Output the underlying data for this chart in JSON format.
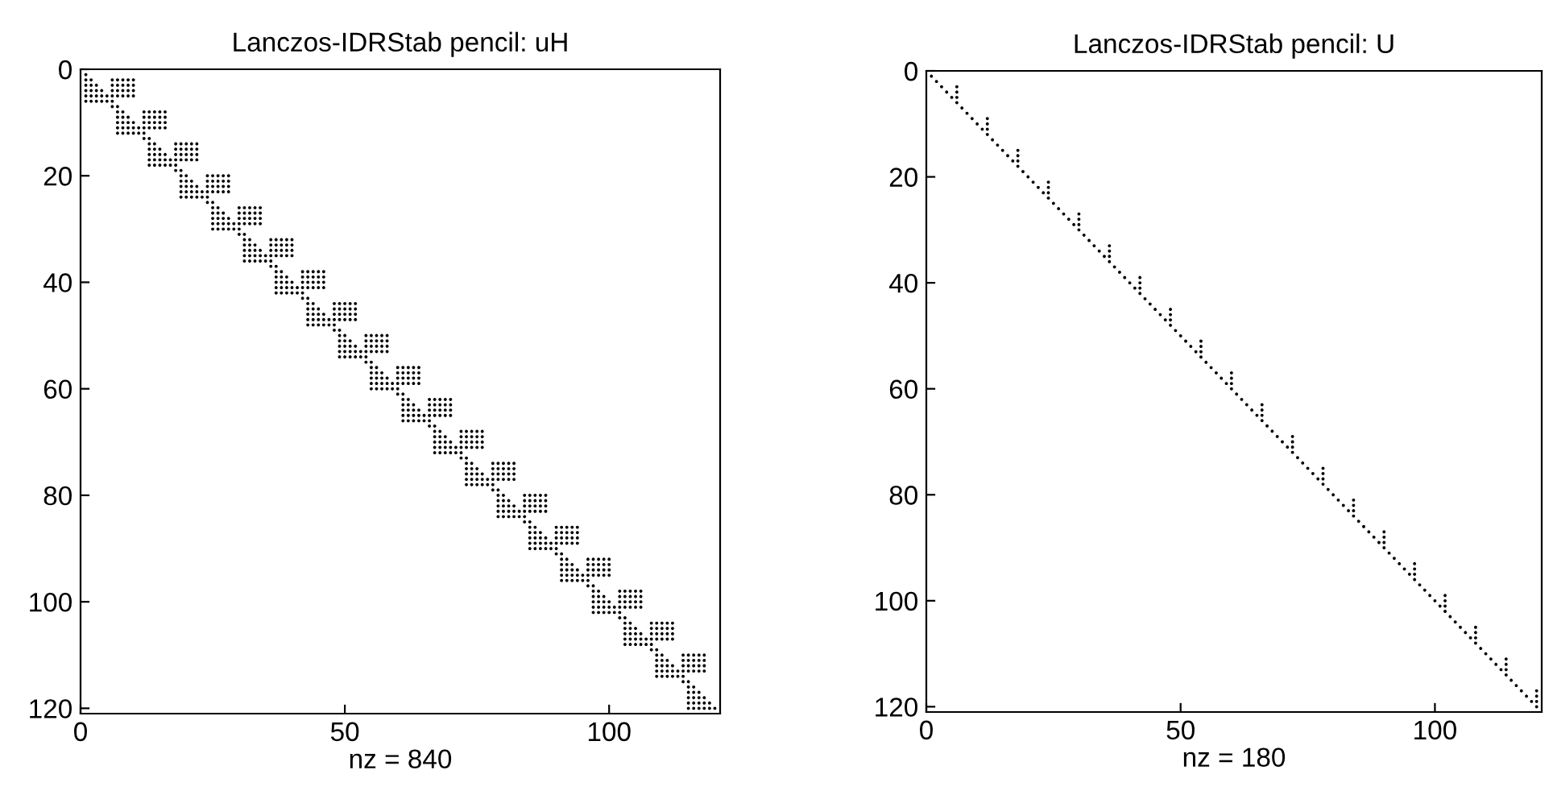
{
  "chart_data": [
    {
      "type": "scatter",
      "title": "Lanczos-IDRStab pencil: uH",
      "xlabel": "nz = 840",
      "xlim": [
        0,
        121
      ],
      "ylim": [
        121,
        0
      ],
      "xticks": [
        0,
        50,
        100
      ],
      "yticks": [
        0,
        20,
        40,
        60,
        80,
        100,
        120
      ],
      "marker": "circle",
      "series": [
        {
          "color": "#000000",
          "x": [
            1,
            1,
            2,
            1,
            2,
            3,
            1,
            2,
            3,
            4,
            1,
            2,
            3,
            4,
            5,
            1,
            2,
            3,
            4,
            5,
            6,
            6,
            7,
            8,
            9,
            10,
            6,
            7,
            8,
            9,
            10,
            6,
            7,
            8,
            9,
            10,
            6,
            7,
            8,
            9,
            10,
            6,
            7,
            7,
            8,
            7,
            8,
            9,
            7,
            8,
            9,
            10,
            7,
            8,
            9,
            10,
            11,
            7,
            8,
            9,
            10,
            11,
            12,
            12,
            13,
            14,
            15,
            16,
            12,
            13,
            14,
            15,
            16,
            12,
            13,
            14,
            15,
            16,
            12,
            13,
            14,
            15,
            16,
            12,
            13,
            13,
            14,
            13,
            14,
            15,
            13,
            14,
            15,
            16,
            13,
            14,
            15,
            16,
            17,
            13,
            14,
            15,
            16,
            17,
            18,
            18,
            19,
            20,
            21,
            22,
            18,
            19,
            20,
            21,
            22,
            18,
            19,
            20,
            21,
            22,
            18,
            19,
            20,
            21,
            22,
            18,
            19,
            19,
            20,
            19,
            20,
            21,
            19,
            20,
            21,
            22,
            19,
            20,
            21,
            22,
            23,
            19,
            20,
            21,
            22,
            23,
            24,
            24,
            25,
            26,
            27,
            28,
            24,
            25,
            26,
            27,
            28,
            24,
            25,
            26,
            27,
            28,
            24,
            25,
            26,
            27,
            28,
            24,
            25,
            25,
            26,
            25,
            26,
            27,
            25,
            26,
            27,
            28,
            25,
            26,
            27,
            28,
            29,
            25,
            26,
            27,
            28,
            29,
            30,
            30,
            31,
            32,
            33,
            34,
            30,
            31,
            32,
            33,
            34,
            30,
            31,
            32,
            33,
            34,
            30,
            31,
            32,
            33,
            34,
            30,
            31,
            31,
            32,
            31,
            32,
            33,
            31,
            32,
            33,
            34,
            31,
            32,
            33,
            34,
            35,
            31,
            32,
            33,
            34,
            35,
            36,
            36,
            37,
            38,
            39,
            40,
            36,
            37,
            38,
            39,
            40,
            36,
            37,
            38,
            39,
            40,
            36,
            37,
            38,
            39,
            40,
            36,
            37,
            37,
            38,
            37,
            38,
            39,
            37,
            38,
            39,
            40,
            37,
            38,
            39,
            40,
            41,
            37,
            38,
            39,
            40,
            41,
            42,
            42,
            43,
            44,
            45,
            46,
            42,
            43,
            44,
            45,
            46,
            42,
            43,
            44,
            45,
            46,
            42,
            43,
            44,
            45,
            46,
            42,
            43,
            43,
            44,
            43,
            44,
            45,
            43,
            44,
            45,
            46,
            43,
            44,
            45,
            46,
            47,
            43,
            44,
            45,
            46,
            47,
            48,
            48,
            49,
            50,
            51,
            52,
            48,
            49,
            50,
            51,
            52,
            48,
            49,
            50,
            51,
            52,
            48,
            49,
            50,
            51,
            52,
            48,
            49,
            49,
            50,
            49,
            50,
            51,
            49,
            50,
            51,
            52,
            49,
            50,
            51,
            52,
            53,
            49,
            50,
            51,
            52,
            53,
            54,
            54,
            55,
            56,
            57,
            58,
            54,
            55,
            56,
            57,
            58,
            54,
            55,
            56,
            57,
            58,
            54,
            55,
            56,
            57,
            58,
            54,
            55,
            55,
            56,
            55,
            56,
            57,
            55,
            56,
            57,
            58,
            55,
            56,
            57,
            58,
            59,
            55,
            56,
            57,
            58,
            59,
            60,
            60,
            61,
            62,
            63,
            64,
            60,
            61,
            62,
            63,
            64,
            60,
            61,
            62,
            63,
            64,
            60,
            61,
            62,
            63,
            64,
            60,
            61,
            61,
            62,
            61,
            62,
            63,
            61,
            62,
            63,
            64,
            61,
            62,
            63,
            64,
            65,
            61,
            62,
            63,
            64,
            65,
            66,
            66,
            67,
            68,
            69,
            70,
            66,
            67,
            68,
            69,
            70,
            66,
            67,
            68,
            69,
            70,
            66,
            67,
            68,
            69,
            70,
            66,
            67,
            67,
            68,
            67,
            68,
            69,
            67,
            68,
            69,
            70,
            67,
            68,
            69,
            70,
            71,
            67,
            68,
            69,
            70,
            71,
            72,
            72,
            73,
            74,
            75,
            76,
            72,
            73,
            74,
            75,
            76,
            72,
            73,
            74,
            75,
            76,
            72,
            73,
            74,
            75,
            76,
            72,
            73,
            73,
            74,
            73,
            74,
            75,
            73,
            74,
            75,
            76,
            73,
            74,
            75,
            76,
            77,
            73,
            74,
            75,
            76,
            77,
            78,
            78,
            79,
            80,
            81,
            82,
            78,
            79,
            80,
            81,
            82,
            78,
            79,
            80,
            81,
            82,
            78,
            79,
            80,
            81,
            82,
            78,
            79,
            79,
            80,
            79,
            80,
            81,
            79,
            80,
            81,
            82,
            79,
            80,
            81,
            82,
            83,
            79,
            80,
            81,
            82,
            83,
            84,
            84,
            85,
            86,
            87,
            88,
            84,
            85,
            86,
            87,
            88,
            84,
            85,
            86,
            87,
            88,
            84,
            85,
            86,
            87,
            88,
            84,
            85,
            85,
            86,
            85,
            86,
            87,
            85,
            86,
            87,
            88,
            85,
            86,
            87,
            88,
            89,
            85,
            86,
            87,
            88,
            89,
            90,
            90,
            91,
            92,
            93,
            94,
            90,
            91,
            92,
            93,
            94,
            90,
            91,
            92,
            93,
            94,
            90,
            91,
            92,
            93,
            94,
            90,
            91,
            91,
            92,
            91,
            92,
            93,
            91,
            92,
            93,
            94,
            91,
            92,
            93,
            94,
            95,
            91,
            92,
            93,
            94,
            95,
            96,
            96,
            97,
            98,
            99,
            100,
            96,
            97,
            98,
            99,
            100,
            96,
            97,
            98,
            99,
            100,
            96,
            97,
            98,
            99,
            100,
            96,
            97,
            97,
            98,
            97,
            98,
            99,
            97,
            98,
            99,
            100,
            97,
            98,
            99,
            100,
            101,
            97,
            98,
            99,
            100,
            101,
            102,
            102,
            103,
            104,
            105,
            106,
            102,
            103,
            104,
            105,
            106,
            102,
            103,
            104,
            105,
            106,
            102,
            103,
            104,
            105,
            106,
            102,
            103,
            103,
            104,
            103,
            104,
            105,
            103,
            104,
            105,
            106,
            103,
            104,
            105,
            106,
            107,
            103,
            104,
            105,
            106,
            107,
            108,
            108,
            109,
            110,
            111,
            112,
            108,
            109,
            110,
            111,
            112,
            108,
            109,
            110,
            111,
            112,
            108,
            109,
            110,
            111,
            112,
            108,
            109,
            109,
            110,
            109,
            110,
            111,
            109,
            110,
            111,
            112,
            109,
            110,
            111,
            112,
            113,
            109,
            110,
            111,
            112,
            113,
            114,
            114,
            115,
            116,
            117,
            118,
            114,
            115,
            116,
            117,
            118,
            114,
            115,
            116,
            117,
            118,
            114,
            115,
            116,
            117,
            118,
            114,
            115,
            115,
            116,
            115,
            116,
            117,
            115,
            116,
            117,
            118,
            115,
            116,
            117,
            118,
            119,
            115,
            116,
            117,
            118,
            119,
            120
          ],
          "values": [
            1,
            2,
            2,
            3,
            3,
            3,
            4,
            4,
            4,
            4,
            5,
            5,
            5,
            5,
            5,
            6,
            6,
            6,
            6,
            6,
            6,
            2,
            2,
            2,
            2,
            2,
            3,
            3,
            3,
            3,
            3,
            4,
            4,
            4,
            4,
            4,
            5,
            5,
            5,
            5,
            5,
            7,
            7,
            8,
            8,
            9,
            9,
            9,
            10,
            10,
            10,
            10,
            11,
            11,
            11,
            11,
            11,
            12,
            12,
            12,
            12,
            12,
            12,
            8,
            8,
            8,
            8,
            8,
            9,
            9,
            9,
            9,
            9,
            10,
            10,
            10,
            10,
            10,
            11,
            11,
            11,
            11,
            11,
            13,
            13,
            14,
            14,
            15,
            15,
            15,
            16,
            16,
            16,
            16,
            17,
            17,
            17,
            17,
            17,
            18,
            18,
            18,
            18,
            18,
            18,
            14,
            14,
            14,
            14,
            14,
            15,
            15,
            15,
            15,
            15,
            16,
            16,
            16,
            16,
            16,
            17,
            17,
            17,
            17,
            17,
            19,
            19,
            20,
            20,
            21,
            21,
            21,
            22,
            22,
            22,
            22,
            23,
            23,
            23,
            23,
            23,
            24,
            24,
            24,
            24,
            24,
            24,
            20,
            20,
            20,
            20,
            20,
            21,
            21,
            21,
            21,
            21,
            22,
            22,
            22,
            22,
            22,
            23,
            23,
            23,
            23,
            23,
            25,
            25,
            26,
            26,
            27,
            27,
            27,
            28,
            28,
            28,
            28,
            29,
            29,
            29,
            29,
            29,
            30,
            30,
            30,
            30,
            30,
            30,
            26,
            26,
            26,
            26,
            26,
            27,
            27,
            27,
            27,
            27,
            28,
            28,
            28,
            28,
            28,
            29,
            29,
            29,
            29,
            29,
            31,
            31,
            32,
            32,
            33,
            33,
            33,
            34,
            34,
            34,
            34,
            35,
            35,
            35,
            35,
            35,
            36,
            36,
            36,
            36,
            36,
            36,
            32,
            32,
            32,
            32,
            32,
            33,
            33,
            33,
            33,
            33,
            34,
            34,
            34,
            34,
            34,
            35,
            35,
            35,
            35,
            35,
            37,
            37,
            38,
            38,
            39,
            39,
            39,
            40,
            40,
            40,
            40,
            41,
            41,
            41,
            41,
            41,
            42,
            42,
            42,
            42,
            42,
            42,
            38,
            38,
            38,
            38,
            38,
            39,
            39,
            39,
            39,
            39,
            40,
            40,
            40,
            40,
            40,
            41,
            41,
            41,
            41,
            41,
            43,
            43,
            44,
            44,
            45,
            45,
            45,
            46,
            46,
            46,
            46,
            47,
            47,
            47,
            47,
            47,
            48,
            48,
            48,
            48,
            48,
            48,
            44,
            44,
            44,
            44,
            44,
            45,
            45,
            45,
            45,
            45,
            46,
            46,
            46,
            46,
            46,
            47,
            47,
            47,
            47,
            47,
            49,
            49,
            50,
            50,
            51,
            51,
            51,
            52,
            52,
            52,
            52,
            53,
            53,
            53,
            53,
            53,
            54,
            54,
            54,
            54,
            54,
            54,
            50,
            50,
            50,
            50,
            50,
            51,
            51,
            51,
            51,
            51,
            52,
            52,
            52,
            52,
            52,
            53,
            53,
            53,
            53,
            53,
            55,
            55,
            56,
            56,
            57,
            57,
            57,
            58,
            58,
            58,
            58,
            59,
            59,
            59,
            59,
            59,
            60,
            60,
            60,
            60,
            60,
            60,
            56,
            56,
            56,
            56,
            56,
            57,
            57,
            57,
            57,
            57,
            58,
            58,
            58,
            58,
            58,
            59,
            59,
            59,
            59,
            59,
            61,
            61,
            62,
            62,
            63,
            63,
            63,
            64,
            64,
            64,
            64,
            65,
            65,
            65,
            65,
            65,
            66,
            66,
            66,
            66,
            66,
            66,
            62,
            62,
            62,
            62,
            62,
            63,
            63,
            63,
            63,
            63,
            64,
            64,
            64,
            64,
            64,
            65,
            65,
            65,
            65,
            65,
            67,
            67,
            68,
            68,
            69,
            69,
            69,
            70,
            70,
            70,
            70,
            71,
            71,
            71,
            71,
            71,
            72,
            72,
            72,
            72,
            72,
            72,
            68,
            68,
            68,
            68,
            68,
            69,
            69,
            69,
            69,
            69,
            70,
            70,
            70,
            70,
            70,
            71,
            71,
            71,
            71,
            71,
            73,
            73,
            74,
            74,
            75,
            75,
            75,
            76,
            76,
            76,
            76,
            77,
            77,
            77,
            77,
            77,
            78,
            78,
            78,
            78,
            78,
            78,
            74,
            74,
            74,
            74,
            74,
            75,
            75,
            75,
            75,
            75,
            76,
            76,
            76,
            76,
            76,
            77,
            77,
            77,
            77,
            77,
            79,
            79,
            80,
            80,
            81,
            81,
            81,
            82,
            82,
            82,
            82,
            83,
            83,
            83,
            83,
            83,
            84,
            84,
            84,
            84,
            84,
            84,
            80,
            80,
            80,
            80,
            80,
            81,
            81,
            81,
            81,
            81,
            82,
            82,
            82,
            82,
            82,
            83,
            83,
            83,
            83,
            83,
            85,
            85,
            86,
            86,
            87,
            87,
            87,
            88,
            88,
            88,
            88,
            89,
            89,
            89,
            89,
            89,
            90,
            90,
            90,
            90,
            90,
            90,
            86,
            86,
            86,
            86,
            86,
            87,
            87,
            87,
            87,
            87,
            88,
            88,
            88,
            88,
            88,
            89,
            89,
            89,
            89,
            89,
            91,
            91,
            92,
            92,
            93,
            93,
            93,
            94,
            94,
            94,
            94,
            95,
            95,
            95,
            95,
            95,
            96,
            96,
            96,
            96,
            96,
            96,
            92,
            92,
            92,
            92,
            92,
            93,
            93,
            93,
            93,
            93,
            94,
            94,
            94,
            94,
            94,
            95,
            95,
            95,
            95,
            95,
            97,
            97,
            98,
            98,
            99,
            99,
            99,
            100,
            100,
            100,
            100,
            101,
            101,
            101,
            101,
            101,
            102,
            102,
            102,
            102,
            102,
            102,
            98,
            98,
            98,
            98,
            98,
            99,
            99,
            99,
            99,
            99,
            100,
            100,
            100,
            100,
            100,
            101,
            101,
            101,
            101,
            101,
            103,
            103,
            104,
            104,
            105,
            105,
            105,
            106,
            106,
            106,
            106,
            107,
            107,
            107,
            107,
            107,
            108,
            108,
            108,
            108,
            108,
            108,
            104,
            104,
            104,
            104,
            104,
            105,
            105,
            105,
            105,
            105,
            106,
            106,
            106,
            106,
            106,
            107,
            107,
            107,
            107,
            107,
            109,
            109,
            110,
            110,
            111,
            111,
            111,
            112,
            112,
            112,
            112,
            113,
            113,
            113,
            113,
            113,
            114,
            114,
            114,
            114,
            114,
            114,
            110,
            110,
            110,
            110,
            110,
            111,
            111,
            111,
            111,
            111,
            112,
            112,
            112,
            112,
            112,
            113,
            113,
            113,
            113,
            113,
            115,
            115,
            116,
            116,
            117,
            117,
            117,
            118,
            118,
            118,
            118,
            119,
            119,
            119,
            119,
            119,
            120,
            120,
            120,
            120,
            120,
            120
          ]
        }
      ]
    },
    {
      "type": "scatter",
      "title": "Lanczos-IDRStab pencil: U",
      "xlabel": "nz = 180",
      "xlim": [
        0,
        121
      ],
      "ylim": [
        121,
        0
      ],
      "xticks": [
        0,
        50,
        100
      ],
      "yticks": [
        0,
        20,
        40,
        60,
        80,
        100,
        120
      ],
      "marker": "circle",
      "series": [
        {
          "color": "#000000",
          "x": [
            1,
            2,
            3,
            4,
            5,
            6,
            7,
            8,
            9,
            10,
            11,
            12,
            13,
            14,
            15,
            16,
            17,
            18,
            19,
            20,
            21,
            22,
            23,
            24,
            25,
            26,
            27,
            28,
            29,
            30,
            31,
            32,
            33,
            34,
            35,
            36,
            37,
            38,
            39,
            40,
            41,
            42,
            43,
            44,
            45,
            46,
            47,
            48,
            49,
            50,
            51,
            52,
            53,
            54,
            55,
            56,
            57,
            58,
            59,
            60,
            61,
            62,
            63,
            64,
            65,
            66,
            67,
            68,
            69,
            70,
            71,
            72,
            73,
            74,
            75,
            76,
            77,
            78,
            79,
            80,
            81,
            82,
            83,
            84,
            85,
            86,
            87,
            88,
            89,
            90,
            91,
            92,
            93,
            94,
            95,
            96,
            97,
            98,
            99,
            100,
            101,
            102,
            103,
            104,
            105,
            106,
            107,
            108,
            109,
            110,
            111,
            112,
            113,
            114,
            115,
            116,
            117,
            118,
            119,
            120,
            6,
            6,
            6,
            12,
            12,
            12,
            18,
            18,
            18,
            24,
            24,
            24,
            30,
            30,
            30,
            36,
            36,
            36,
            42,
            42,
            42,
            48,
            48,
            48,
            54,
            54,
            54,
            60,
            60,
            60,
            66,
            66,
            66,
            72,
            72,
            72,
            78,
            78,
            78,
            84,
            84,
            84,
            90,
            90,
            90,
            96,
            96,
            96,
            102,
            102,
            102,
            108,
            108,
            108,
            114,
            114,
            114,
            120,
            120,
            120
          ],
          "values": [
            1,
            2,
            3,
            4,
            5,
            6,
            7,
            8,
            9,
            10,
            11,
            12,
            13,
            14,
            15,
            16,
            17,
            18,
            19,
            20,
            21,
            22,
            23,
            24,
            25,
            26,
            27,
            28,
            29,
            30,
            31,
            32,
            33,
            34,
            35,
            36,
            37,
            38,
            39,
            40,
            41,
            42,
            43,
            44,
            45,
            46,
            47,
            48,
            49,
            50,
            51,
            52,
            53,
            54,
            55,
            56,
            57,
            58,
            59,
            60,
            61,
            62,
            63,
            64,
            65,
            66,
            67,
            68,
            69,
            70,
            71,
            72,
            73,
            74,
            75,
            76,
            77,
            78,
            79,
            80,
            81,
            82,
            83,
            84,
            85,
            86,
            87,
            88,
            89,
            90,
            91,
            92,
            93,
            94,
            95,
            96,
            97,
            98,
            99,
            100,
            101,
            102,
            103,
            104,
            105,
            106,
            107,
            108,
            109,
            110,
            111,
            112,
            113,
            114,
            115,
            116,
            117,
            118,
            119,
            120,
            3,
            4,
            5,
            9,
            10,
            11,
            15,
            16,
            17,
            21,
            22,
            23,
            27,
            28,
            29,
            33,
            34,
            35,
            39,
            40,
            41,
            45,
            46,
            47,
            51,
            52,
            53,
            57,
            58,
            59,
            63,
            64,
            65,
            69,
            70,
            71,
            75,
            76,
            77,
            81,
            82,
            83,
            87,
            88,
            89,
            93,
            94,
            95,
            99,
            100,
            101,
            105,
            106,
            107,
            111,
            112,
            113,
            117,
            118,
            119
          ]
        }
      ]
    }
  ]
}
